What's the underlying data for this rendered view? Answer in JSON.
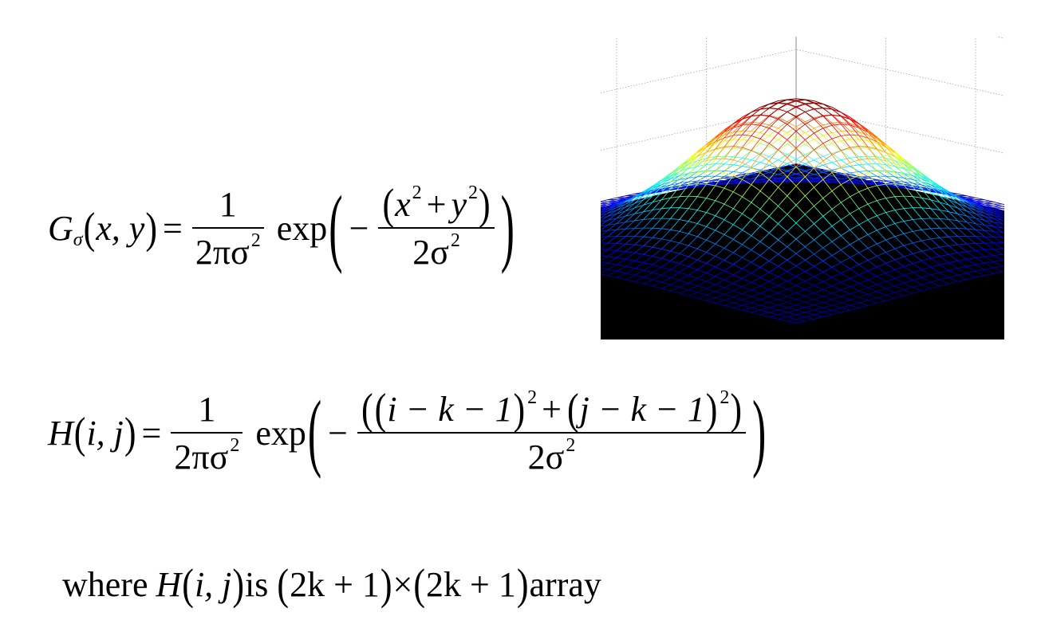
{
  "eq1": {
    "lhs_symbol": "G",
    "lhs_sub": "σ",
    "lhs_args": "x, y",
    "equals": "=",
    "coef_num": "1",
    "coef_den_base": "2πσ",
    "coef_den_exp": "2",
    "exp": "exp",
    "minus": "−",
    "num_x": "x",
    "num_x_exp": "2",
    "plus": "+",
    "num_y": "y",
    "num_y_exp": "2",
    "den_base": "2σ",
    "den_exp": "2"
  },
  "eq2": {
    "lhs_symbol": "H",
    "lhs_args": "i, j",
    "equals": "=",
    "coef_num": "1",
    "coef_den_base": "2πσ",
    "coef_den_exp": "2",
    "exp": "exp",
    "minus": "−",
    "term1": "i − k − 1",
    "term1_exp": "2",
    "plus": "+",
    "term2": "j − k − 1",
    "term2_exp": "2",
    "den_base": "2σ",
    "den_exp": "2"
  },
  "eq3": {
    "where": "where",
    "symbol": "H",
    "args": "i, j",
    "is": "is",
    "dim1": "2k + 1",
    "times": "×",
    "dim2": "2k + 1",
    "array": "array"
  },
  "plot": {
    "type": "3d-mesh-gaussian",
    "background": "#000000",
    "wall_color": "#ffffff",
    "colormap": "jet",
    "base_color": "#2233cc",
    "peak_color": "#d81e1e"
  }
}
